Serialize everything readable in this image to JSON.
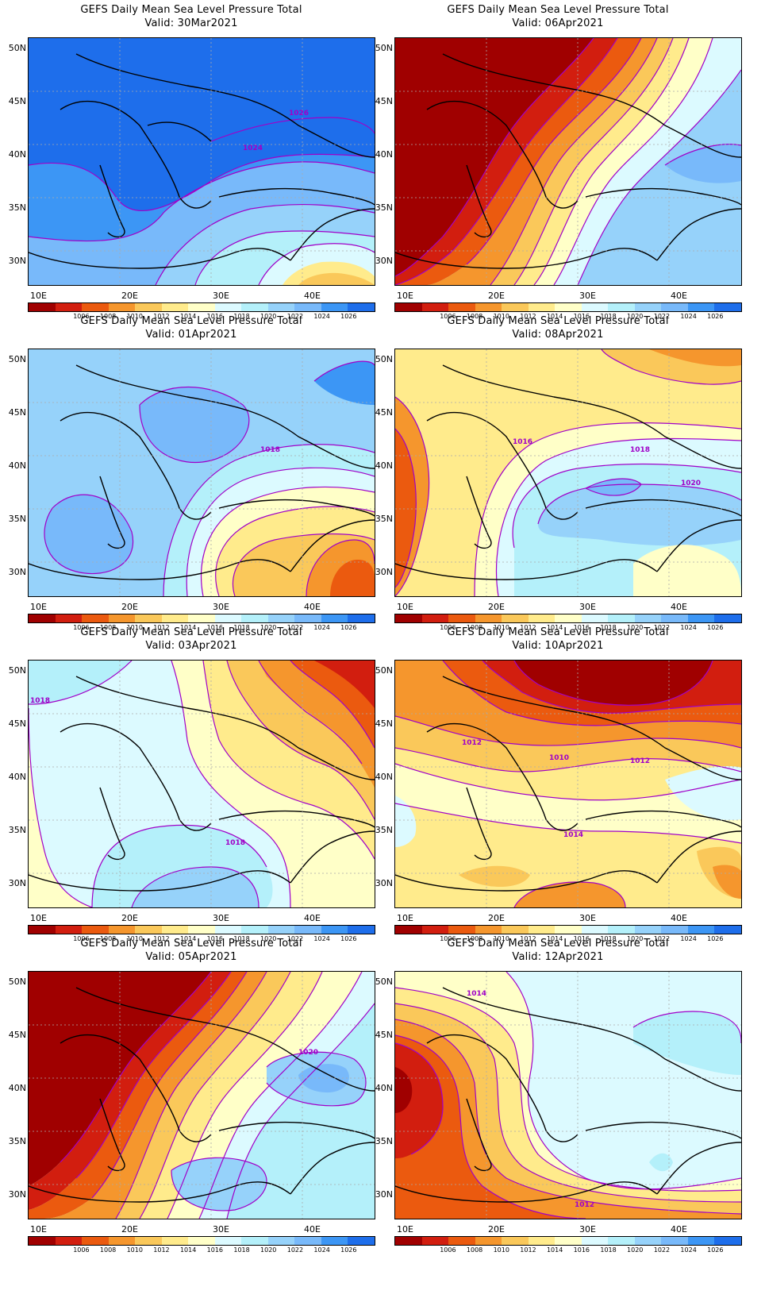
{
  "colorbar": {
    "colors": [
      "#a00000",
      "#d21e0f",
      "#eb5a0f",
      "#f5962d",
      "#fac85a",
      "#ffeb8c",
      "#ffffc8",
      "#dcfaff",
      "#b4f0fa",
      "#96d2fa",
      "#78b9fa",
      "#3c96f5",
      "#1e6eeb"
    ],
    "labels": [
      "1006",
      "1008",
      "1010",
      "1012",
      "1014",
      "1016",
      "1018",
      "1020",
      "1022",
      "1024",
      "1026"
    ]
  },
  "axes": {
    "lat_labels": [
      "50N",
      "45N",
      "40N",
      "35N",
      "30N"
    ],
    "lon_labels": [
      "10E",
      "20E",
      "30E",
      "40E"
    ]
  },
  "panels": [
    {
      "title": "GEFS Daily Mean Sea Level Pressure Total",
      "valid": "Valid: 30Mar2021",
      "contour_labels": [
        {
          "text": "1026"
        },
        {
          "text": "1024"
        }
      ]
    },
    {
      "title": "GEFS Daily Mean Sea Level Pressure Total",
      "valid": "Valid: 06Apr2021",
      "contour_labels": []
    },
    {
      "title": "GEFS Daily Mean Sea Level Pressure Total",
      "valid": "Valid: 01Apr2021",
      "contour_labels": [
        {
          "text": "1018"
        }
      ]
    },
    {
      "title": "GEFS Daily Mean Sea Level Pressure Total",
      "valid": "Valid: 08Apr2021",
      "contour_labels": [
        {
          "text": "1016"
        },
        {
          "text": "1018"
        },
        {
          "text": "1020"
        }
      ]
    },
    {
      "title": "GEFS Daily Mean Sea Level Pressure Total",
      "valid": "Valid: 03Apr2021",
      "contour_labels": [
        {
          "text": "1018"
        },
        {
          "text": "1018"
        }
      ]
    },
    {
      "title": "GEFS Daily Mean Sea Level Pressure Total",
      "valid": "Valid: 10Apr2021",
      "contour_labels": [
        {
          "text": "1012"
        },
        {
          "text": "1010"
        },
        {
          "text": "1012"
        },
        {
          "text": "1014"
        }
      ]
    },
    {
      "title": "GEFS Daily Mean Sea Level Pressure Total",
      "valid": "Valid: 05Apr2021",
      "contour_labels": [
        {
          "text": "1020"
        }
      ]
    },
    {
      "title": "GEFS Daily Mean Sea Level Pressure Total",
      "valid": "Valid: 12Apr2021",
      "contour_labels": [
        {
          "text": "1014"
        },
        {
          "text": "1012"
        }
      ]
    }
  ]
}
